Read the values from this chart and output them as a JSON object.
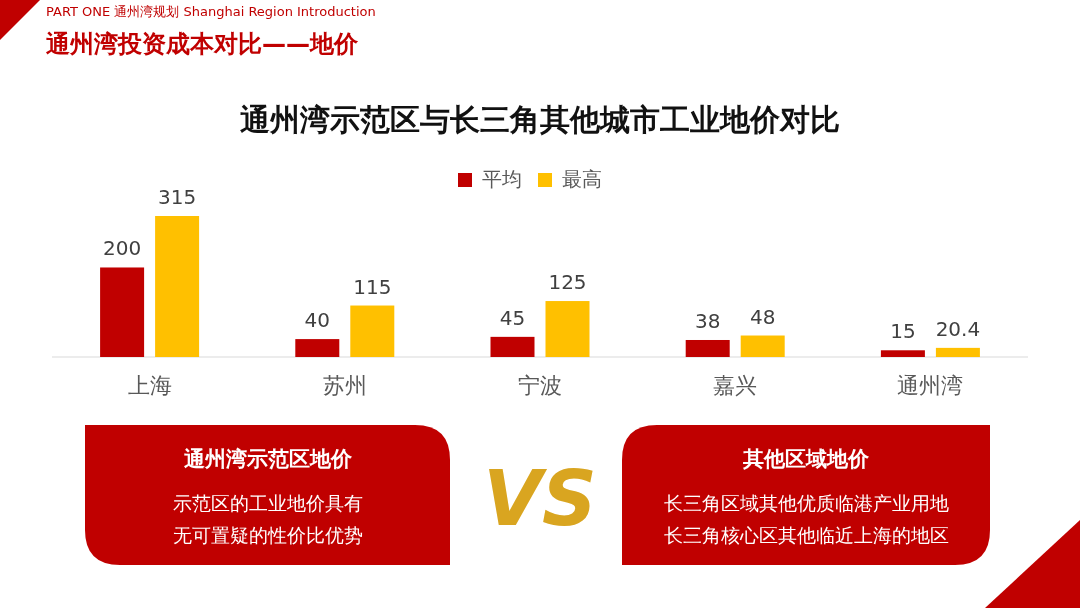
{
  "chart_data": {
    "type": "bar",
    "title": "通州湾示范区与长三角其他城市工业地价对比",
    "categories": [
      "上海",
      "苏州",
      "宁波",
      "嘉兴",
      "通州湾"
    ],
    "series": [
      {
        "name": "平均",
        "color": "#c00000",
        "values": [
          200,
          40,
          45,
          38,
          15
        ]
      },
      {
        "name": "最高",
        "color": "#ffc000",
        "values": [
          315,
          115,
          125,
          48,
          20.4
        ]
      }
    ],
    "data_labels": true,
    "legend": "top",
    "annotations": [
      "PART ONE 通州湾规划 Shanghai Region Introduction",
      "通州湾投资成本对比——地价",
      "通州湾示范区地价",
      "示范区的工业地价具有",
      "无可置疑的性价比优势",
      "VS",
      "其他区域地价",
      "长三角区域其他优质临港产业用地",
      "长三角核心区其他临近上海的地区"
    ]
  }
}
